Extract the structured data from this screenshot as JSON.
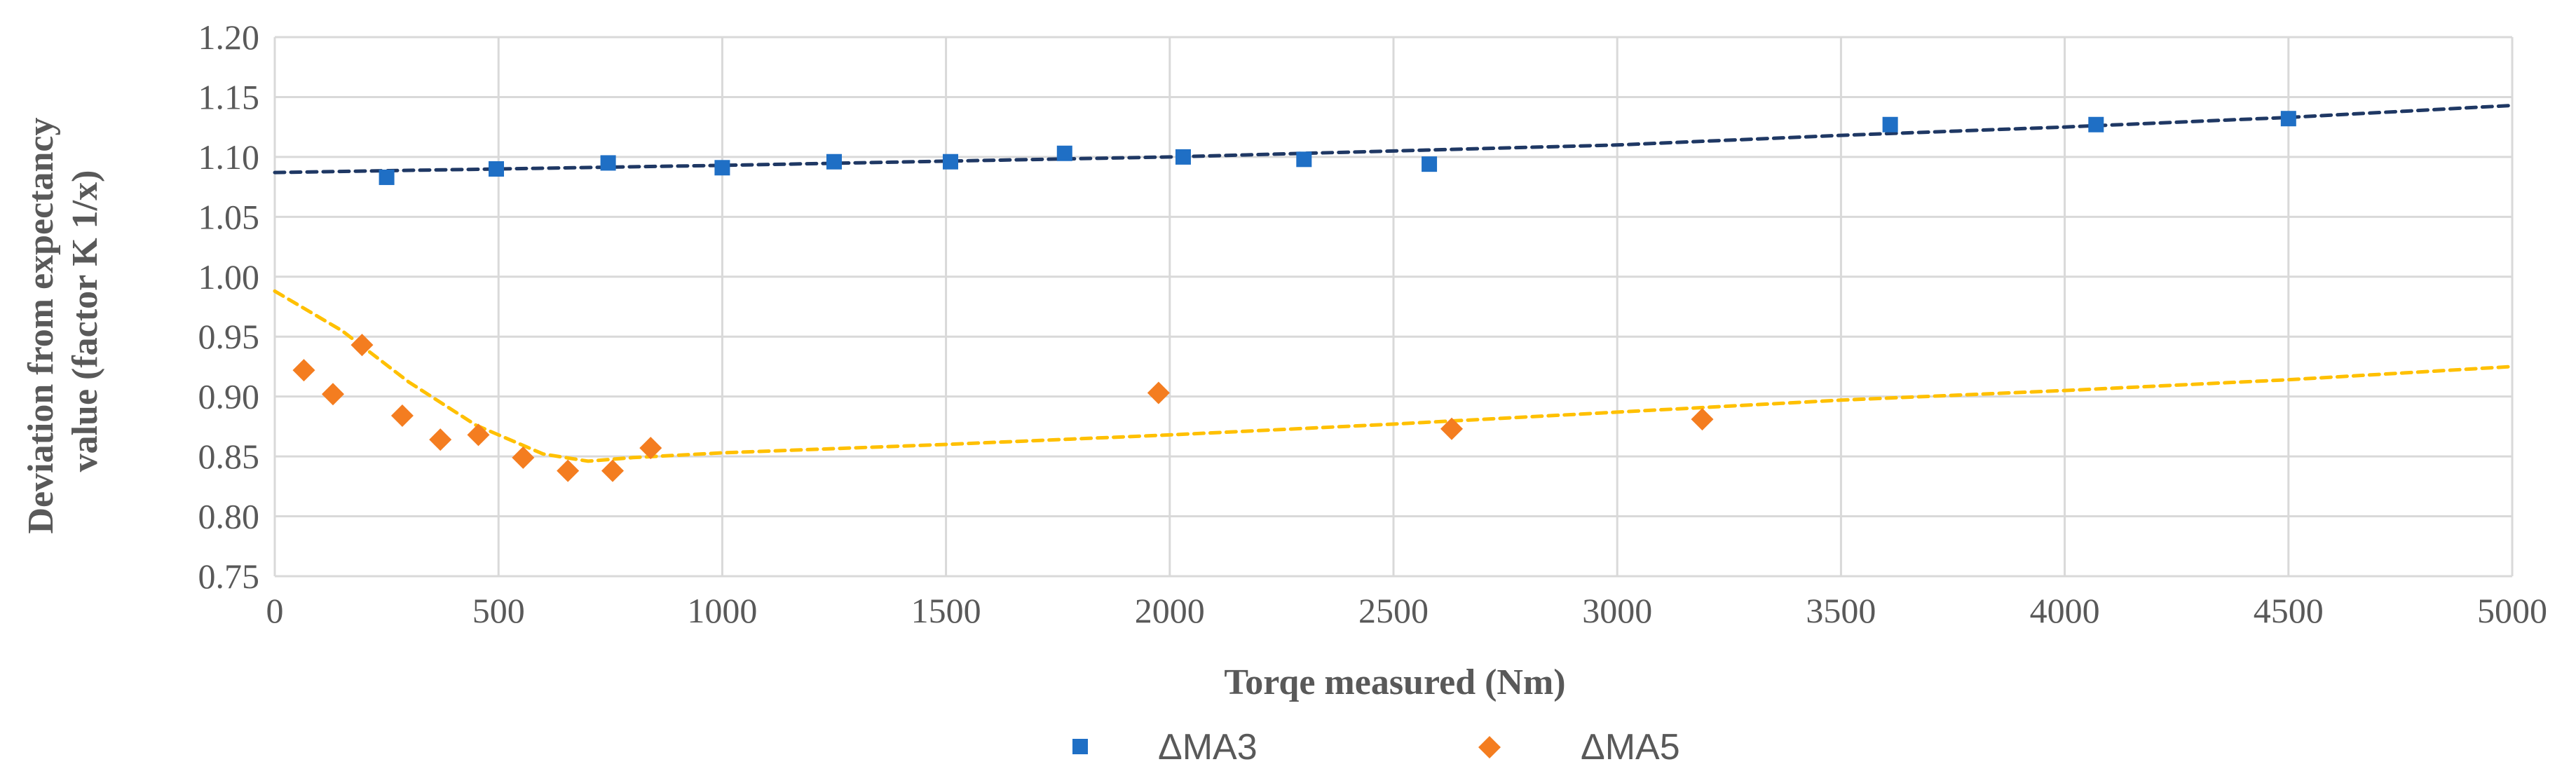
{
  "chart_data": {
    "type": "scatter",
    "xlabel": "Torqe measured (Nm)",
    "ylabel_lines": [
      "Deviation from expectancy",
      "value (factor K 1/x)"
    ],
    "xlim": [
      0,
      5000
    ],
    "ylim": [
      0.75,
      1.2
    ],
    "xticks": [
      0,
      500,
      1000,
      1500,
      2000,
      2500,
      3000,
      3500,
      4000,
      4500,
      5000
    ],
    "xtick_labels": [
      "0",
      "500",
      "1000",
      "1500",
      "2000",
      "2500",
      "3000",
      "3500",
      "4000",
      "4500",
      "5000"
    ],
    "yticks": [
      0.75,
      0.8,
      0.85,
      0.9,
      0.95,
      1.0,
      1.05,
      1.1,
      1.15,
      1.2
    ],
    "ytick_labels": [
      "0.75",
      "0.80",
      "0.85",
      "0.90",
      "0.95",
      "1.00",
      "1.05",
      "1.10",
      "1.15",
      "1.20"
    ],
    "grid": true,
    "legend_position": "bottom",
    "series": [
      {
        "name": "ΔMA3",
        "marker": "square",
        "color": "#1f6fc5",
        "trendline_color": "#1f3864",
        "points": [
          [
            250,
            1.083
          ],
          [
            495,
            1.09
          ],
          [
            745,
            1.095
          ],
          [
            1000,
            1.091
          ],
          [
            1250,
            1.096
          ],
          [
            1510,
            1.096
          ],
          [
            1765,
            1.103
          ],
          [
            2030,
            1.1
          ],
          [
            2300,
            1.098
          ],
          [
            2580,
            1.094
          ],
          [
            3610,
            1.127
          ],
          [
            4070,
            1.127
          ],
          [
            4500,
            1.132
          ]
        ],
        "trendline": [
          [
            0,
            1.087
          ],
          [
            1000,
            1.093
          ],
          [
            2000,
            1.1
          ],
          [
            3000,
            1.11
          ],
          [
            3500,
            1.118
          ],
          [
            4000,
            1.125
          ],
          [
            4500,
            1.133
          ],
          [
            5000,
            1.143
          ]
        ]
      },
      {
        "name": "ΔMA5",
        "marker": "diamond",
        "color": "#f47d20",
        "trendline_color": "#ffc000",
        "points": [
          [
            65,
            0.922
          ],
          [
            130,
            0.902
          ],
          [
            195,
            0.943
          ],
          [
            285,
            0.884
          ],
          [
            370,
            0.864
          ],
          [
            455,
            0.868
          ],
          [
            555,
            0.849
          ],
          [
            655,
            0.838
          ],
          [
            755,
            0.838
          ],
          [
            840,
            0.857
          ],
          [
            1975,
            0.903
          ],
          [
            2630,
            0.873
          ],
          [
            3190,
            0.881
          ]
        ],
        "trendline": [
          [
            0,
            0.988
          ],
          [
            150,
            0.955
          ],
          [
            300,
            0.912
          ],
          [
            450,
            0.876
          ],
          [
            600,
            0.852
          ],
          [
            700,
            0.846
          ],
          [
            800,
            0.849
          ],
          [
            1000,
            0.853
          ],
          [
            1500,
            0.86
          ],
          [
            2000,
            0.868
          ],
          [
            2500,
            0.877
          ],
          [
            3000,
            0.887
          ],
          [
            3500,
            0.897
          ],
          [
            4000,
            0.905
          ],
          [
            4500,
            0.914
          ],
          [
            5000,
            0.925
          ]
        ]
      }
    ]
  }
}
